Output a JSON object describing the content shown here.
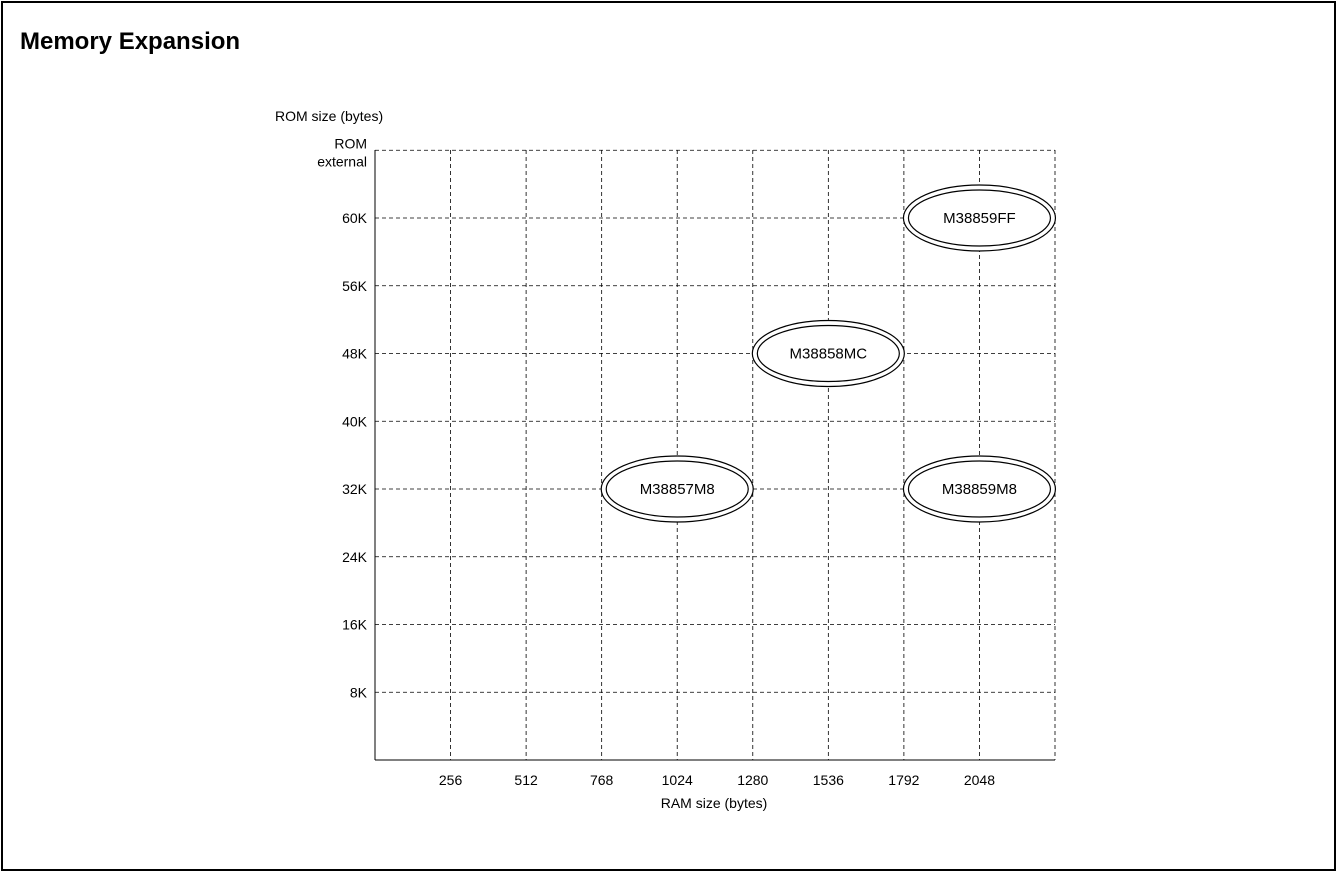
{
  "page": {
    "title": "Memory Expansion"
  },
  "chart_data": {
    "type": "scatter",
    "title": "Memory Expansion",
    "xlabel": "RAM size (bytes)",
    "ylabel": "ROM size (bytes)",
    "x_ticks": [
      256,
      512,
      768,
      1024,
      1280,
      1536,
      1792,
      2048
    ],
    "x_tick_labels": [
      "256",
      "512",
      "768",
      "1024",
      "1280",
      "1536",
      "1792",
      "2048"
    ],
    "x_range": [
      0,
      2304
    ],
    "y_categories": [
      "8K",
      "16K",
      "24K",
      "32K",
      "40K",
      "48K",
      "56K",
      "60K",
      "ROM external"
    ],
    "y_tick_labels": [
      "8K",
      "16K",
      "24K",
      "32K",
      "40K",
      "48K",
      "56K",
      "60K",
      "ROM\nexternal"
    ],
    "grid": true,
    "points": [
      {
        "label": "M38859FF",
        "ram": 2048,
        "rom": "60K"
      },
      {
        "label": "M38858MC",
        "ram": 1536,
        "rom": "48K"
      },
      {
        "label": "M38857M8",
        "ram": 1024,
        "rom": "32K"
      },
      {
        "label": "M38859M8",
        "ram": 2048,
        "rom": "32K"
      }
    ]
  }
}
